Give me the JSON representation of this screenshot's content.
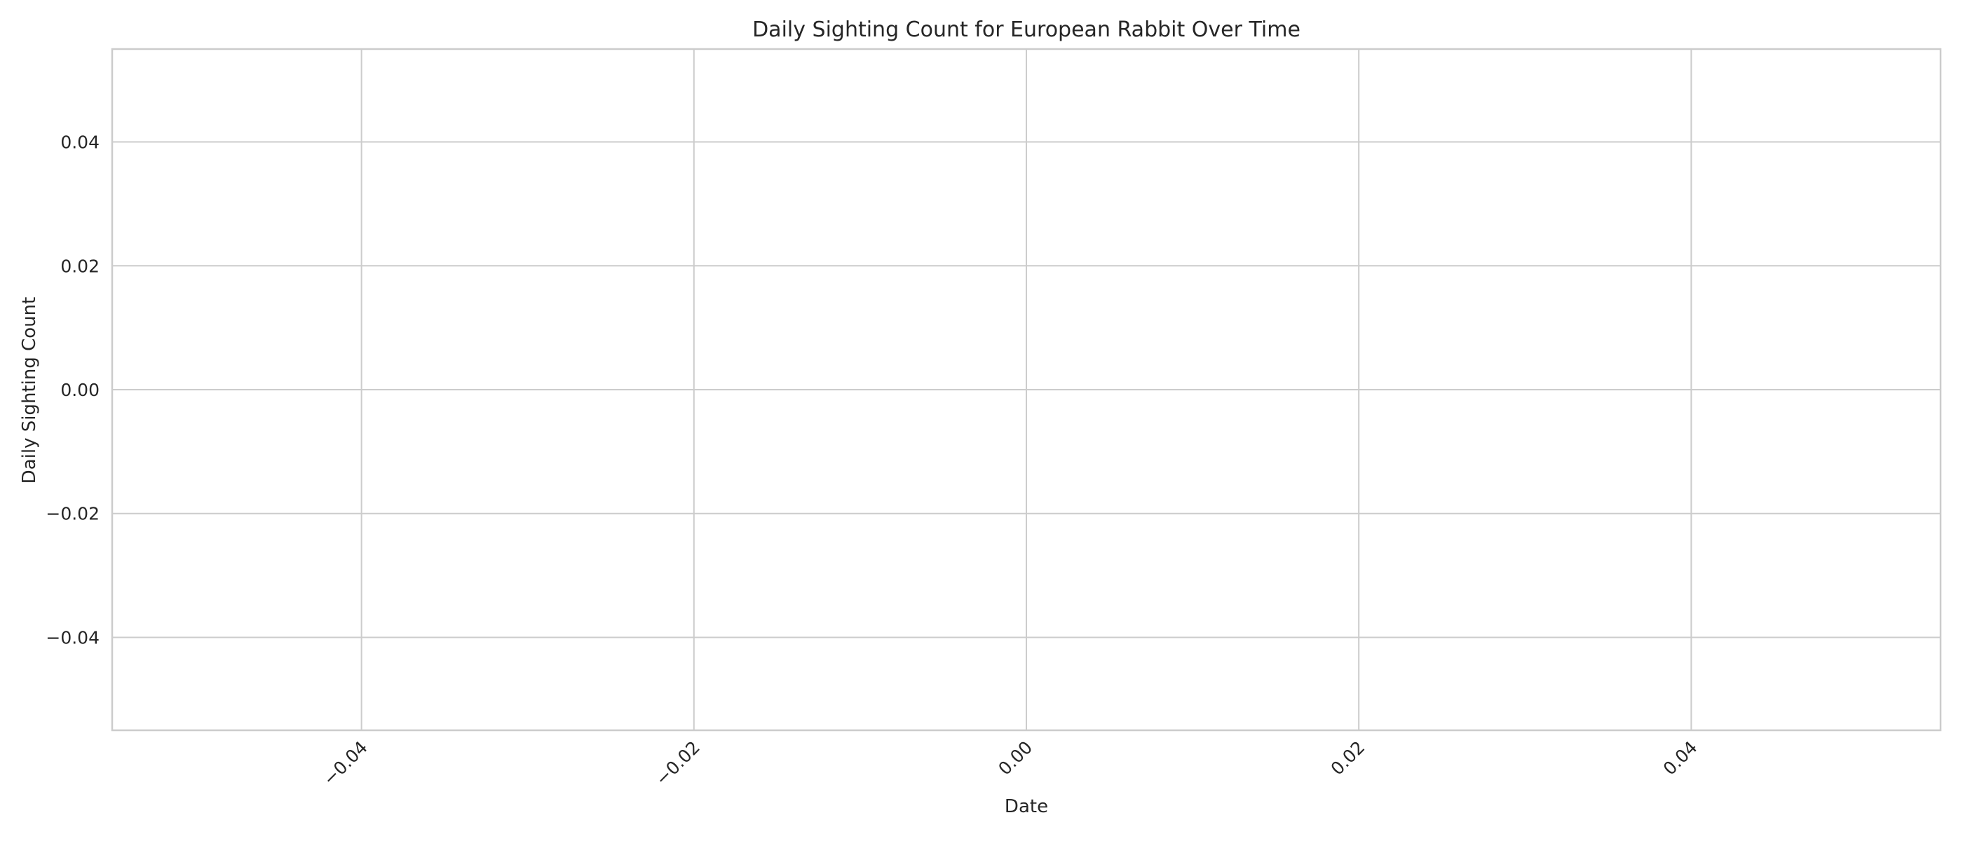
{
  "chart_data": {
    "type": "line",
    "title": "Daily Sighting Count for European Rabbit Over Time",
    "xlabel": "Date",
    "ylabel": "Daily Sighting Count",
    "xlim": [
      -0.055,
      0.055
    ],
    "ylim": [
      -0.055,
      0.055
    ],
    "x_ticks": [
      -0.04,
      -0.02,
      0.0,
      0.02,
      0.04
    ],
    "x_tick_labels": [
      "−0.04",
      "−0.02",
      "0.00",
      "0.02",
      "0.04"
    ],
    "y_ticks": [
      -0.04,
      -0.02,
      0.0,
      0.02,
      0.04
    ],
    "y_tick_labels": [
      "−0.04",
      "−0.02",
      "0.00",
      "0.02",
      "0.04"
    ],
    "x_tick_rotation_deg": 45,
    "grid": true,
    "series": []
  }
}
